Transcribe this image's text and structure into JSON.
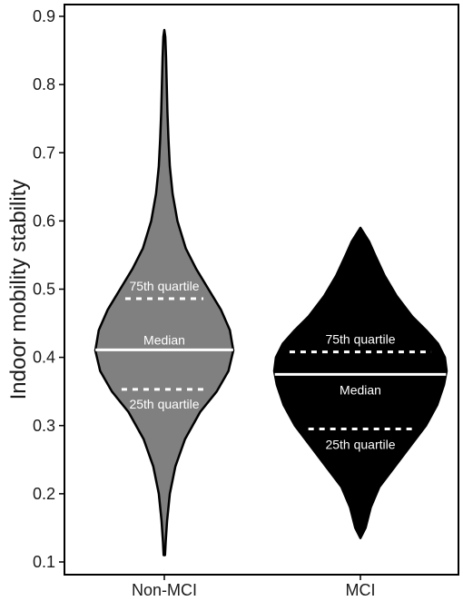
{
  "chart_data": {
    "type": "violin",
    "ylabel": "Indoor mobility stability",
    "ylim": [
      0.1,
      0.9
    ],
    "yticks": [
      "0.1",
      "0.2",
      "0.3",
      "0.4",
      "0.5",
      "0.6",
      "0.7",
      "0.8",
      "0.9"
    ],
    "categories": [
      "Non-MCI",
      "MCI"
    ],
    "series": [
      {
        "category": "Non-MCI",
        "color": "#808080",
        "min": 0.11,
        "max": 0.88,
        "q1": 0.353,
        "median": 0.411,
        "q3": 0.486,
        "density": [
          [
            0.11,
            0.01
          ],
          [
            0.13,
            0.02
          ],
          [
            0.16,
            0.04
          ],
          [
            0.2,
            0.08
          ],
          [
            0.24,
            0.16
          ],
          [
            0.28,
            0.3
          ],
          [
            0.32,
            0.52
          ],
          [
            0.35,
            0.76
          ],
          [
            0.38,
            0.93
          ],
          [
            0.41,
            1.0
          ],
          [
            0.44,
            0.95
          ],
          [
            0.47,
            0.82
          ],
          [
            0.5,
            0.64
          ],
          [
            0.53,
            0.46
          ],
          [
            0.56,
            0.31
          ],
          [
            0.6,
            0.19
          ],
          [
            0.64,
            0.12
          ],
          [
            0.68,
            0.08
          ],
          [
            0.72,
            0.06
          ],
          [
            0.76,
            0.045
          ],
          [
            0.8,
            0.035
          ],
          [
            0.84,
            0.025
          ],
          [
            0.87,
            0.014
          ],
          [
            0.88,
            0.0
          ]
        ],
        "annotations": {
          "q3": "75th quartile",
          "median": "Median",
          "q1": "25th quartile"
        }
      },
      {
        "category": "MCI",
        "color": "#000000",
        "min": 0.135,
        "max": 0.59,
        "q1": 0.295,
        "median": 0.375,
        "q3": 0.408,
        "density": [
          [
            0.135,
            0.0
          ],
          [
            0.15,
            0.06
          ],
          [
            0.18,
            0.12
          ],
          [
            0.21,
            0.22
          ],
          [
            0.24,
            0.4
          ],
          [
            0.27,
            0.58
          ],
          [
            0.3,
            0.76
          ],
          [
            0.33,
            0.89
          ],
          [
            0.36,
            0.97
          ],
          [
            0.38,
            1.0
          ],
          [
            0.4,
            0.98
          ],
          [
            0.42,
            0.9
          ],
          [
            0.44,
            0.76
          ],
          [
            0.46,
            0.6
          ],
          [
            0.49,
            0.42
          ],
          [
            0.52,
            0.28
          ],
          [
            0.55,
            0.17
          ],
          [
            0.57,
            0.1
          ],
          [
            0.58,
            0.05
          ],
          [
            0.59,
            0.0
          ]
        ],
        "annotations": {
          "q3": "75th quartile",
          "median": "Median",
          "q1": "25th quartile"
        }
      }
    ]
  }
}
